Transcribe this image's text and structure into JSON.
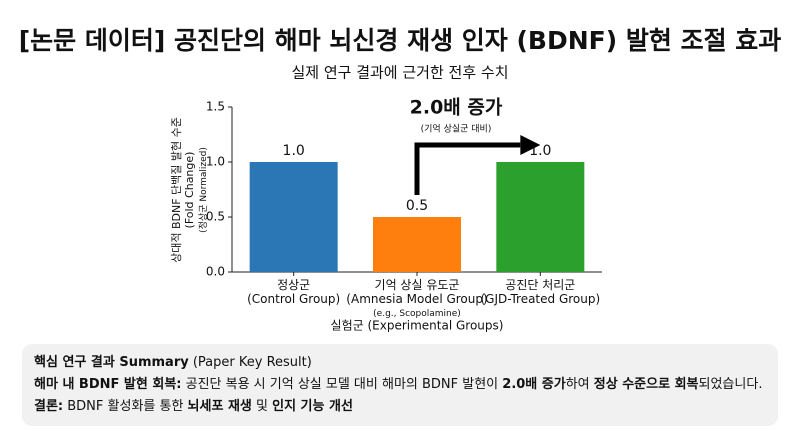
{
  "chart_data": {
    "type": "bar",
    "title": "[논문 데이터] 공진단의 해마 뇌신경 재생 인자 (BDNF) 발현 조절 효과",
    "subtitle": "실제 연구 결과에 근거한 전후 수치",
    "y_label": [
      "상대적 BDNF 단백질 발현 수준",
      "(Fold Change)",
      "(정상군 Normalized)"
    ],
    "x_label": "실험군 (Experimental Groups)",
    "categories": [
      [
        "정상군",
        "(Control Group)"
      ],
      [
        "기억 상실 유도군",
        "(Amnesia Model Group)",
        "(e.g., Scopolamine)"
      ],
      [
        "공진단 처리군",
        "(GJD-Treated Group)"
      ]
    ],
    "values": [
      1,
      0.5,
      1
    ],
    "value_labels": [
      "1.0",
      "0.5",
      "1.0"
    ],
    "colors": [
      "#2b77b5",
      "#ff7f0e",
      "#2ca02c"
    ],
    "ylim": [
      0,
      1.5
    ],
    "yticks": [
      {
        "value": 0,
        "label": "0.0"
      },
      {
        "value": 0.5,
        "label": "0.5"
      },
      {
        "value": 1,
        "label": "1.0"
      },
      {
        "value": 1.5,
        "label": "1.5"
      }
    ],
    "annotation": {
      "text": "2.0배 증가",
      "subtext": "(기억 상실군 대비)"
    }
  },
  "summary": {
    "lines": [
      [
        {
          "text": "핵심 연구 결과 Summary",
          "bold": true
        },
        {
          "text": " (Paper Key Result)",
          "bold": false
        }
      ],
      [
        {
          "text": "해마 내 BDNF 발현 회복:",
          "bold": true
        },
        {
          "text": " 공진단 복용 시 기억 상실 모델 대비 해마의 BDNF 발현이 ",
          "bold": false
        },
        {
          "text": "2.0배 증가",
          "bold": true
        },
        {
          "text": "하여 ",
          "bold": false
        },
        {
          "text": "정상 수준으로 회복",
          "bold": true
        },
        {
          "text": "되었습니다.",
          "bold": false
        }
      ],
      [
        {
          "text": "결론:",
          "bold": true
        },
        {
          "text": " BDNF 활성화를 통한 ",
          "bold": false
        },
        {
          "text": "뇌세포 재생",
          "bold": true
        },
        {
          "text": " 및 ",
          "bold": false
        },
        {
          "text": "인지 기능 개선",
          "bold": true
        }
      ]
    ]
  }
}
